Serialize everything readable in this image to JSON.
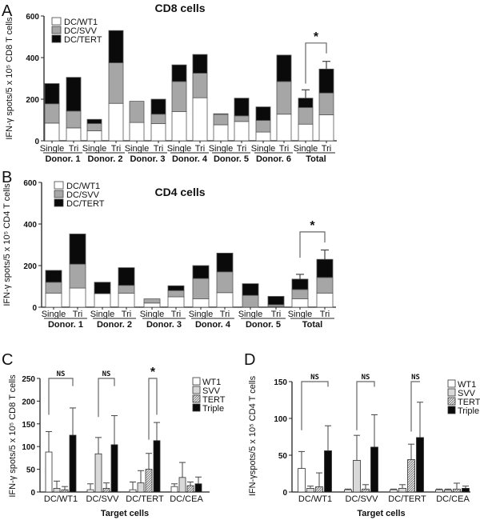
{
  "chart_data": [
    {
      "type": "bar",
      "stacked": true,
      "panel_label": "A",
      "title": "CD8 cells",
      "ylabel": "IFN-γ spots/5 x 10⁵ CD8 T cells",
      "ylim": [
        0,
        600
      ],
      "yticks": [
        "0",
        "200",
        "400",
        "600"
      ],
      "categories": [
        "Single",
        "Tri",
        "Single",
        "Tri",
        "Single",
        "Tri",
        "Single",
        "Tri",
        "Single",
        "Tri",
        "Single",
        "Tri",
        "Single",
        "Tri"
      ],
      "groups": [
        "Donor. 1",
        "Donor. 2",
        "Donor. 3",
        "Donor. 4",
        "Donor. 5",
        "Donor. 6",
        "Total"
      ],
      "colors": {
        "DC/WT1": "#ffffff",
        "DC/SVV": "#a6a6a6",
        "DC/TERT": "#0a0a0a"
      },
      "series": [
        {
          "name": "DC/WT1",
          "values": [
            85,
            62,
            48,
            180,
            88,
            83,
            140,
            207,
            77,
            93,
            42,
            128,
            80,
            125
          ]
        },
        {
          "name": "DC/SVV",
          "values": [
            93,
            81,
            35,
            195,
            102,
            45,
            145,
            118,
            50,
            27,
            56,
            157,
            80,
            105
          ]
        },
        {
          "name": "DC/TERT",
          "values": [
            97,
            162,
            20,
            155,
            0,
            72,
            80,
            90,
            3,
            85,
            65,
            127,
            45,
            115
          ]
        }
      ],
      "error_bars": [
        {
          "category_index": 12,
          "upper": 245
        },
        {
          "category_index": 13,
          "upper": 382
        }
      ],
      "significance": {
        "label": "*",
        "between": [
          12,
          13
        ]
      },
      "legend_position": "top-left"
    },
    {
      "type": "bar",
      "stacked": true,
      "panel_label": "B",
      "title": "CD4 cells",
      "ylabel": "IFN-γ spots/5 x 10⁵ CD4 T cells",
      "ylim": [
        0,
        600
      ],
      "yticks": [
        "0",
        "200",
        "400",
        "600"
      ],
      "categories": [
        "Single",
        "Tri",
        "Single",
        "Tri",
        "Single",
        "Tri",
        "Single",
        "Tri",
        "Single",
        "Tri",
        "Single",
        "Tri"
      ],
      "groups": [
        "Donor. 1",
        "Donor. 2",
        "Donor. 3",
        "Donor. 4",
        "Donor. 5",
        "Total"
      ],
      "colors": {
        "DC/WT1": "#ffffff",
        "DC/SVV": "#a6a6a6",
        "DC/TERT": "#0a0a0a"
      },
      "series": [
        {
          "name": "DC/WT1",
          "values": [
            68,
            92,
            65,
            67,
            20,
            50,
            40,
            70,
            0,
            3,
            40,
            68
          ]
        },
        {
          "name": "DC/SVV",
          "values": [
            52,
            115,
            0,
            38,
            20,
            30,
            98,
            100,
            57,
            9,
            45,
            75
          ]
        },
        {
          "name": "DC/TERT",
          "values": [
            57,
            145,
            55,
            85,
            0,
            23,
            62,
            90,
            56,
            40,
            50,
            87
          ]
        }
      ],
      "error_bars": [
        {
          "category_index": 10,
          "upper": 158
        },
        {
          "category_index": 11,
          "upper": 275
        }
      ],
      "significance": {
        "label": "*",
        "between": [
          10,
          11
        ]
      },
      "legend_position": "top-left"
    },
    {
      "type": "bar",
      "panel_label": "C",
      "ylabel": "IFN-γ spots/5 x 10⁵ CD8 T cells",
      "xlabel": "Target cells",
      "ylim": [
        0,
        250
      ],
      "yticks": [
        "0",
        "50",
        "100",
        "150",
        "200",
        "250"
      ],
      "categories": [
        "DC/WT1",
        "DC/SVV",
        "DC/TERT",
        "DC/CEA"
      ],
      "series": [
        {
          "name": "WT1",
          "values": [
            88,
            5,
            5,
            12
          ],
          "err": [
            133,
            18,
            22,
            18
          ]
        },
        {
          "name": "SVV",
          "values": [
            8,
            84,
            20,
            32
          ],
          "err": [
            24,
            120,
            47,
            65
          ]
        },
        {
          "name": "TERT",
          "values": [
            5,
            8,
            50,
            14
          ],
          "err": [
            12,
            20,
            85,
            22
          ]
        },
        {
          "name": "Triple",
          "values": [
            125,
            104,
            113,
            18
          ],
          "err": [
            185,
            168,
            153,
            33
          ]
        }
      ],
      "significance": [
        {
          "category": "DC/WT1",
          "from": "WT1",
          "to": "Triple",
          "label": "NS"
        },
        {
          "category": "DC/SVV",
          "from": "SVV",
          "to": "Triple",
          "label": "NS"
        },
        {
          "category": "DC/TERT",
          "from": "TERT",
          "to": "Triple",
          "label": "*"
        }
      ],
      "legend_position": "top-right"
    },
    {
      "type": "bar",
      "panel_label": "D",
      "ylabel": "IFN-γspots/5 x 10⁵ CD4 T cells",
      "xlabel": "Target cells",
      "ylim": [
        0,
        150
      ],
      "yticks": [
        "0",
        "50",
        "100",
        "150"
      ],
      "categories": [
        "DC/WT1",
        "DC/SVV",
        "DC/TERT",
        "DC/CEA"
      ],
      "series": [
        {
          "name": "WT1",
          "values": [
            32,
            3,
            3,
            3
          ],
          "err": [
            55,
            4,
            4,
            4
          ]
        },
        {
          "name": "SVV",
          "values": [
            5,
            43,
            5,
            3
          ],
          "err": [
            8,
            77,
            10,
            4
          ]
        },
        {
          "name": "TERT",
          "values": [
            7,
            4,
            44,
            4
          ],
          "err": [
            26,
            10,
            65,
            12
          ]
        },
        {
          "name": "Triple",
          "values": [
            56,
            61,
            74,
            5
          ],
          "err": [
            90,
            105,
            122,
            8
          ]
        }
      ],
      "significance": [
        {
          "category": "DC/WT1",
          "from": "WT1",
          "to": "Triple",
          "label": "NS"
        },
        {
          "category": "DC/SVV",
          "from": "SVV",
          "to": "Triple",
          "label": "NS"
        },
        {
          "category": "DC/TERT",
          "from": "TERT",
          "to": "Triple",
          "label": "NS"
        }
      ],
      "legend_position": "top-right"
    }
  ]
}
